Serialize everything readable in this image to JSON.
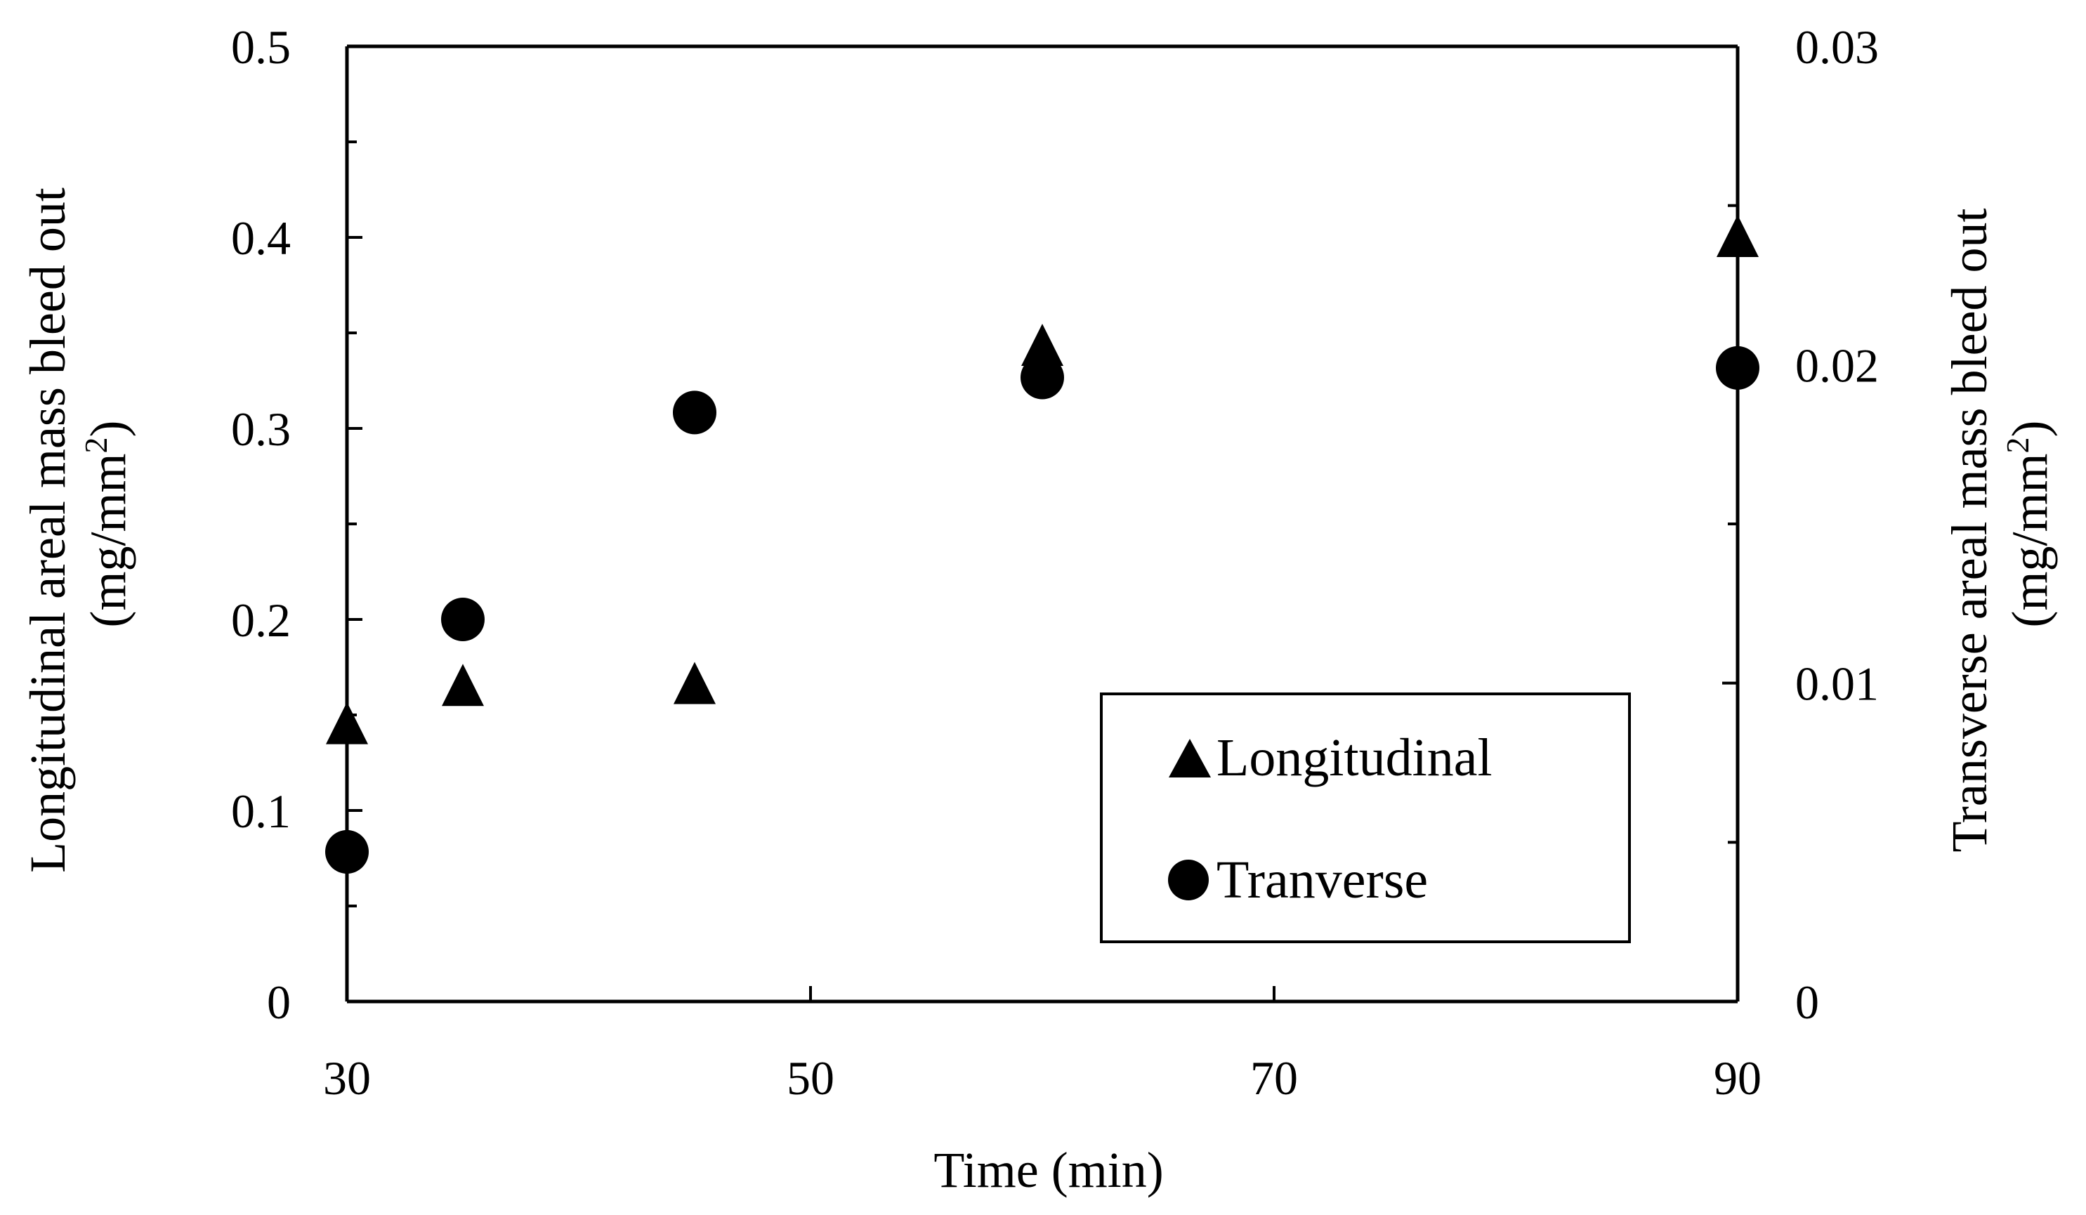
{
  "chart_data": {
    "type": "scatter",
    "xlabel": "Time (min)",
    "ylabel_left": [
      "Longitudinal areal mass bleed out",
      "(mg/mm",
      "2",
      ")"
    ],
    "ylabel_right": [
      "Transverse areal mass bleed out",
      "(mg/mm",
      "2",
      ")"
    ],
    "xlim": [
      30,
      90
    ],
    "ylim_left": [
      0,
      0.5
    ],
    "ylim_right": [
      0,
      0.03
    ],
    "x_ticks": [
      "30",
      "50",
      "70",
      "90"
    ],
    "y_ticks_left": [
      "0",
      "0.1",
      "0.2",
      "0.3",
      "0.4",
      "0.5"
    ],
    "y_ticks_right": [
      "0",
      "0.01",
      "0.02",
      "0.03"
    ],
    "grid": false,
    "legend_position": "bottom-right",
    "series": [
      {
        "name": "Longitudinal",
        "axis": "left",
        "marker": "triangle",
        "color": "#000000",
        "points": [
          [
            30,
            0.145
          ],
          [
            35,
            0.165
          ],
          [
            45,
            0.166
          ],
          [
            60,
            0.343
          ],
          [
            90,
            0.4
          ]
        ]
      },
      {
        "name": "Tranverse",
        "axis": "right",
        "marker": "circle",
        "color": "#000000",
        "points": [
          [
            30,
            0.0047
          ],
          [
            35,
            0.012
          ],
          [
            45,
            0.0185
          ],
          [
            60,
            0.0196
          ],
          [
            90,
            0.0199
          ]
        ]
      }
    ]
  }
}
